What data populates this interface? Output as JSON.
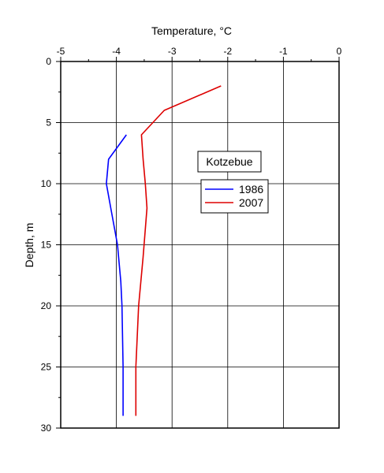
{
  "chart_data": {
    "type": "line",
    "xlabel": "Temperature, °C",
    "ylabel": "Depth, m",
    "xlim": [
      -5,
      0
    ],
    "ylim": [
      0,
      30
    ],
    "y_inverted": true,
    "x_axis_position": "top",
    "x_ticks": [
      -5,
      -4,
      -3,
      -2,
      -1,
      0
    ],
    "x_tick_labels": [
      "-5",
      "-4",
      "-3",
      "-2",
      "-1",
      "0"
    ],
    "y_ticks": [
      0,
      5,
      10,
      15,
      20,
      25,
      30
    ],
    "y_tick_labels": [
      "0",
      "5",
      "10",
      "15",
      "20",
      "25",
      "30"
    ],
    "grid": true,
    "legend_title": "Kotzebue",
    "legend_position": "right-center",
    "series": [
      {
        "name": "1986",
        "color": "#0000ff",
        "points": [
          {
            "x": -3.82,
            "y": 6
          },
          {
            "x": -4.14,
            "y": 8
          },
          {
            "x": -4.18,
            "y": 10
          },
          {
            "x": -4.1,
            "y": 12
          },
          {
            "x": -3.98,
            "y": 15
          },
          {
            "x": -3.92,
            "y": 18
          },
          {
            "x": -3.9,
            "y": 20
          },
          {
            "x": -3.88,
            "y": 25
          },
          {
            "x": -3.88,
            "y": 29
          }
        ]
      },
      {
        "name": "2007",
        "color": "#dd0000",
        "points": [
          {
            "x": -2.12,
            "y": 2
          },
          {
            "x": -3.14,
            "y": 4
          },
          {
            "x": -3.55,
            "y": 6
          },
          {
            "x": -3.52,
            "y": 8
          },
          {
            "x": -3.48,
            "y": 10
          },
          {
            "x": -3.45,
            "y": 12
          },
          {
            "x": -3.52,
            "y": 16
          },
          {
            "x": -3.6,
            "y": 20
          },
          {
            "x": -3.65,
            "y": 25
          },
          {
            "x": -3.65,
            "y": 29
          }
        ]
      }
    ]
  }
}
